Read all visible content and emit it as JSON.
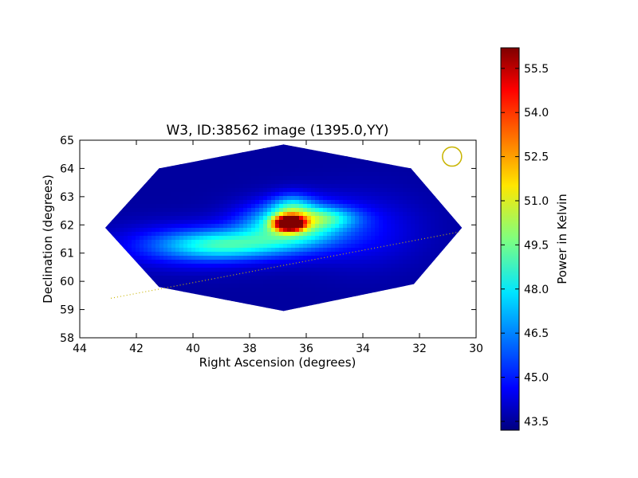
{
  "chart_data": {
    "type": "heatmap",
    "title": "W3, ID:38562 image (1395.0,YY)",
    "xlabel": "Right Ascension (degrees)",
    "ylabel": "Declination (degrees)",
    "xlim": [
      44,
      30
    ],
    "ylim": [
      58,
      65
    ],
    "xticks": [
      "44",
      "42",
      "40",
      "38",
      "36",
      "34",
      "32",
      "30"
    ],
    "yticks": [
      "58",
      "59",
      "60",
      "61",
      "62",
      "63",
      "64",
      "65"
    ],
    "colorbar": {
      "label": "Power in Kelvin",
      "range": [
        43.2,
        56.2
      ],
      "ticks": [
        "43.5",
        "45.0",
        "46.5",
        "48.0",
        "49.5",
        "51.0",
        "52.5",
        "54.0",
        "55.5"
      ],
      "colormap": "jet"
    },
    "map_region_polygon": [
      [
        41.2,
        64.0
      ],
      [
        36.8,
        64.85
      ],
      [
        32.3,
        64.0
      ],
      [
        30.5,
        61.9
      ],
      [
        32.2,
        59.9
      ],
      [
        36.8,
        58.95
      ],
      [
        41.2,
        59.8
      ],
      [
        43.1,
        61.9
      ]
    ],
    "background_level": 43.6,
    "emission_components": [
      {
        "ra": 36.6,
        "dec": 62.05,
        "peak": 12.4,
        "sigma_ra": 0.35,
        "sigma_dec": 0.18
      },
      {
        "ra": 36.5,
        "dec": 62.0,
        "peak": 5.5,
        "sigma_ra": 1.2,
        "sigma_dec": 0.55
      },
      {
        "ra": 38.8,
        "dec": 61.3,
        "peak": 3.4,
        "sigma_ra": 1.5,
        "sigma_dec": 0.35
      },
      {
        "ra": 40.0,
        "dec": 61.25,
        "peak": 2.0,
        "sigma_ra": 2.0,
        "sigma_dec": 0.55
      },
      {
        "ra": 35.3,
        "dec": 62.25,
        "peak": 2.3,
        "sigma_ra": 0.8,
        "sigma_dec": 0.25
      },
      {
        "ra": 36.5,
        "dec": 62.6,
        "peak": 2.5,
        "sigma_ra": 0.5,
        "sigma_dec": 0.35
      },
      {
        "ra": 34.0,
        "dec": 61.8,
        "peak": 1.2,
        "sigma_ra": 1.5,
        "sigma_dec": 0.9
      }
    ],
    "galactic_plane_line": {
      "from": [
        42.9,
        59.4
      ],
      "to": [
        30.6,
        61.75
      ],
      "color": "#c8b400",
      "style": "dotted"
    },
    "beam_marker": {
      "ra": 30.85,
      "dec": 64.42,
      "color": "#c8b400"
    },
    "grid": false
  }
}
